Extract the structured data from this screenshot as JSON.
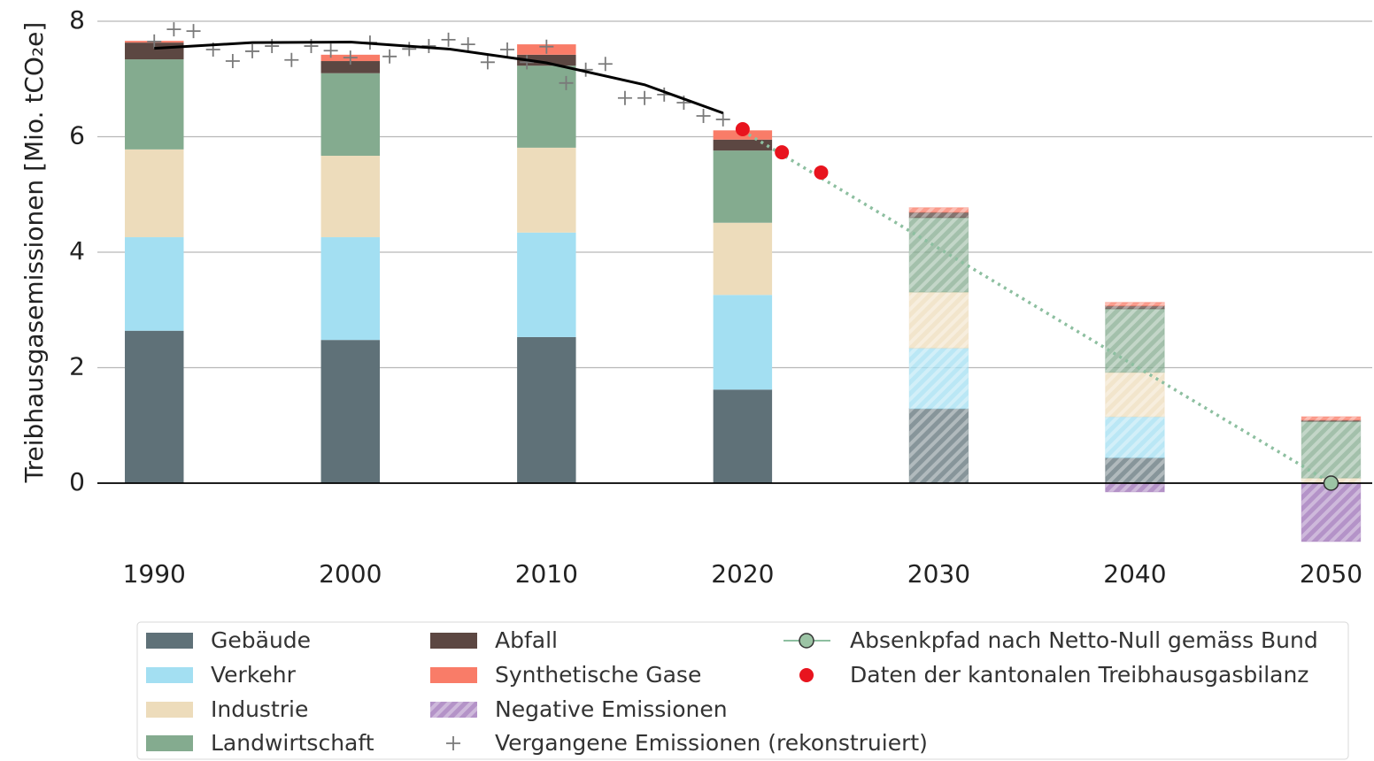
{
  "chart_data": {
    "type": "bar",
    "stacked": true,
    "ylabel": "Treibhausgasemissionen [Mio. tCO₂e]",
    "x": [
      1990,
      2000,
      2010,
      2020,
      2030,
      2040,
      2050
    ],
    "hatched": [
      false,
      false,
      false,
      false,
      true,
      true,
      true
    ],
    "xlim": [
      1987.1,
      2052.1
    ],
    "xticks": [
      1990,
      2000,
      2010,
      2020,
      2030,
      2040,
      2050
    ],
    "ylim": [
      -1.2,
      8
    ],
    "yticks": [
      0,
      2,
      4,
      6,
      8
    ],
    "grid": true,
    "legend": "bottom",
    "series": [
      {
        "name": "Gebäude",
        "type": "bar",
        "color": "#5f7178",
        "values": [
          2.64,
          2.48,
          2.53,
          1.62,
          1.29,
          0.44,
          null
        ]
      },
      {
        "name": "Verkehr",
        "type": "bar",
        "color": "#a3dff2",
        "values": [
          1.62,
          1.78,
          1.81,
          1.64,
          1.05,
          0.71,
          null
        ]
      },
      {
        "name": "Industrie",
        "type": "bar",
        "color": "#eddcbb",
        "values": [
          1.52,
          1.41,
          1.47,
          1.25,
          0.97,
          0.77,
          0.09
        ]
      },
      {
        "name": "Landwirtschaft",
        "type": "bar",
        "color": "#84ab8f",
        "values": [
          1.56,
          1.43,
          1.42,
          1.25,
          1.29,
          1.1,
          0.98
        ]
      },
      {
        "name": "Abfall",
        "type": "bar",
        "color": "#5c4742",
        "values": [
          0.29,
          0.21,
          0.19,
          0.19,
          0.09,
          0.05,
          0.02
        ]
      },
      {
        "name": "Synthetische Gase",
        "type": "bar",
        "color": "#f97c68",
        "values": [
          0.03,
          0.11,
          0.18,
          0.16,
          0.08,
          0.06,
          0.06
        ]
      },
      {
        "name": "Negative Emissionen",
        "type": "bar",
        "color": "#9b6fb5",
        "hatched": true,
        "values": [
          null,
          null,
          null,
          null,
          null,
          -0.15,
          -1.01
        ]
      },
      {
        "name": "Vergangene Emissionen (rekonstruiert)",
        "type": "scatter",
        "marker": "plus",
        "color": "#7a7a7a",
        "x": [
          1990,
          1991,
          1992,
          1993,
          1994,
          1995,
          1996,
          1997,
          1998,
          1999,
          2000,
          2001,
          2002,
          2003,
          2004,
          2005,
          2006,
          2007,
          2008,
          2009,
          2010,
          2011,
          2012,
          2013,
          2014,
          2015,
          2016,
          2017,
          2018,
          2019
        ],
        "values": [
          7.65,
          7.86,
          7.83,
          7.51,
          7.31,
          7.48,
          7.57,
          7.33,
          7.57,
          7.49,
          7.37,
          7.63,
          7.39,
          7.52,
          7.57,
          7.68,
          7.6,
          7.29,
          7.51,
          7.29,
          7.56,
          6.93,
          7.16,
          7.26,
          6.67,
          6.67,
          6.73,
          6.59,
          6.36,
          6.3
        ]
      },
      {
        "name": "Absenkpfad nach Netto-Null gemäss Bund",
        "type": "line",
        "linestyle": "dotted",
        "end_marker": true,
        "color": "#8dbfa0",
        "x": [
          2020,
          2050
        ],
        "values": [
          6.1,
          0
        ]
      },
      {
        "name": "Daten der kantonalen Treibhausgasbilanz",
        "type": "scatter",
        "marker": "circle",
        "color": "#e8141e",
        "x": [
          2020,
          2022,
          2024
        ],
        "values": [
          6.13,
          5.73,
          5.38
        ]
      },
      {
        "type": "line",
        "linestyle": "solid",
        "color": "#000000",
        "x": [
          1990,
          1995,
          2000,
          2005,
          2010,
          2015,
          2019
        ],
        "values": [
          7.53,
          7.63,
          7.64,
          7.52,
          7.28,
          6.9,
          6.41
        ]
      }
    ]
  }
}
